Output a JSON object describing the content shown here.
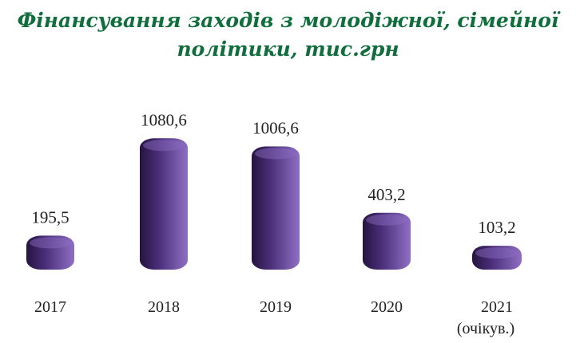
{
  "chart_data": {
    "type": "bar",
    "title_line1": "Фінансування заходів з молодіжної, сімейної",
    "title_line2": "політики, тис.грн",
    "categories": [
      "2017",
      "2018",
      "2019",
      "2020",
      "2021"
    ],
    "category_notes": [
      "",
      "",
      "",
      "",
      "(очікув.)"
    ],
    "values": [
      195.5,
      1080.6,
      1006.6,
      403.2,
      103.2
    ],
    "value_labels": [
      "195,5",
      "1080,6",
      "1006,6",
      "403,2",
      "103,2"
    ],
    "bar_style": "3d-capsule",
    "grid": false,
    "legend": "none"
  },
  "colors": {
    "title": "#0f6e3c",
    "bar_fill": "#4b2f7a",
    "bar_highlight": "#8f6fc4",
    "bar_shadow": "#25143f",
    "text": "#222222"
  }
}
